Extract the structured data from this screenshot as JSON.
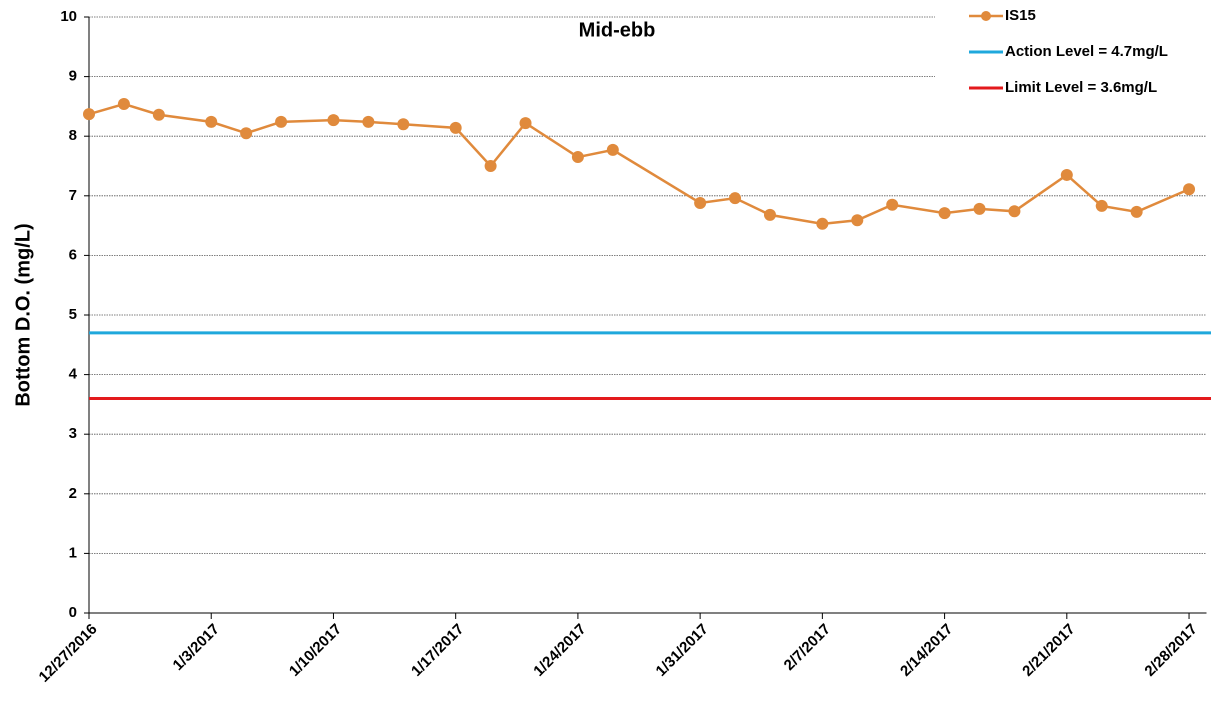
{
  "chart_data": {
    "type": "line",
    "title": "Mid-ebb",
    "y_label": "Bottom  D.O. (mg/L)",
    "x": [
      "2016-12-27",
      "2016-12-29",
      "2016-12-31",
      "2017-01-03",
      "2017-01-05",
      "2017-01-07",
      "2017-01-10",
      "2017-01-12",
      "2017-01-14",
      "2017-01-17",
      "2017-01-19",
      "2017-01-21",
      "2017-01-24",
      "2017-01-26",
      "2017-01-31",
      "2017-02-02",
      "2017-02-04",
      "2017-02-07",
      "2017-02-09",
      "2017-02-11",
      "2017-02-14",
      "2017-02-16",
      "2017-02-18",
      "2017-02-21",
      "2017-02-23",
      "2017-02-25",
      "2017-02-28"
    ],
    "series": [
      {
        "name": "IS15",
        "color": "#e08a3c",
        "values": [
          8.37,
          8.54,
          8.36,
          8.24,
          8.05,
          8.24,
          8.27,
          8.24,
          8.2,
          8.14,
          7.5,
          8.22,
          7.65,
          7.77,
          6.88,
          6.96,
          6.68,
          6.53,
          6.59,
          6.85,
          6.71,
          6.78,
          6.74,
          7.35,
          6.83,
          6.73,
          7.11
        ]
      }
    ],
    "lines": [
      {
        "name": "Action Level = 4.7mg/L",
        "color": "#1fa8dc",
        "value": 4.7
      },
      {
        "name": "Limit Level = 3.6mg/L",
        "color": "#e31a1c",
        "value": 3.6
      }
    ],
    "xlim": [
      "2016-12-27",
      "2017-03-01"
    ],
    "xticks": [
      {
        "value": "2016-12-27",
        "label": "12/27/2016"
      },
      {
        "value": "2017-01-03",
        "label": "1/3/2017"
      },
      {
        "value": "2017-01-10",
        "label": "1/10/2017"
      },
      {
        "value": "2017-01-17",
        "label": "1/17/2017"
      },
      {
        "value": "2017-01-24",
        "label": "1/24/2017"
      },
      {
        "value": "2017-01-31",
        "label": "1/31/2017"
      },
      {
        "value": "2017-02-07",
        "label": "2/7/2017"
      },
      {
        "value": "2017-02-14",
        "label": "2/14/2017"
      },
      {
        "value": "2017-02-21",
        "label": "2/21/2017"
      },
      {
        "value": "2017-02-28",
        "label": "2/28/2017"
      }
    ],
    "ylim": [
      0,
      10
    ],
    "yticks": [
      0,
      1,
      2,
      3,
      4,
      5,
      6,
      7,
      8,
      9,
      10
    ],
    "grid": true,
    "legend": "upper right"
  }
}
